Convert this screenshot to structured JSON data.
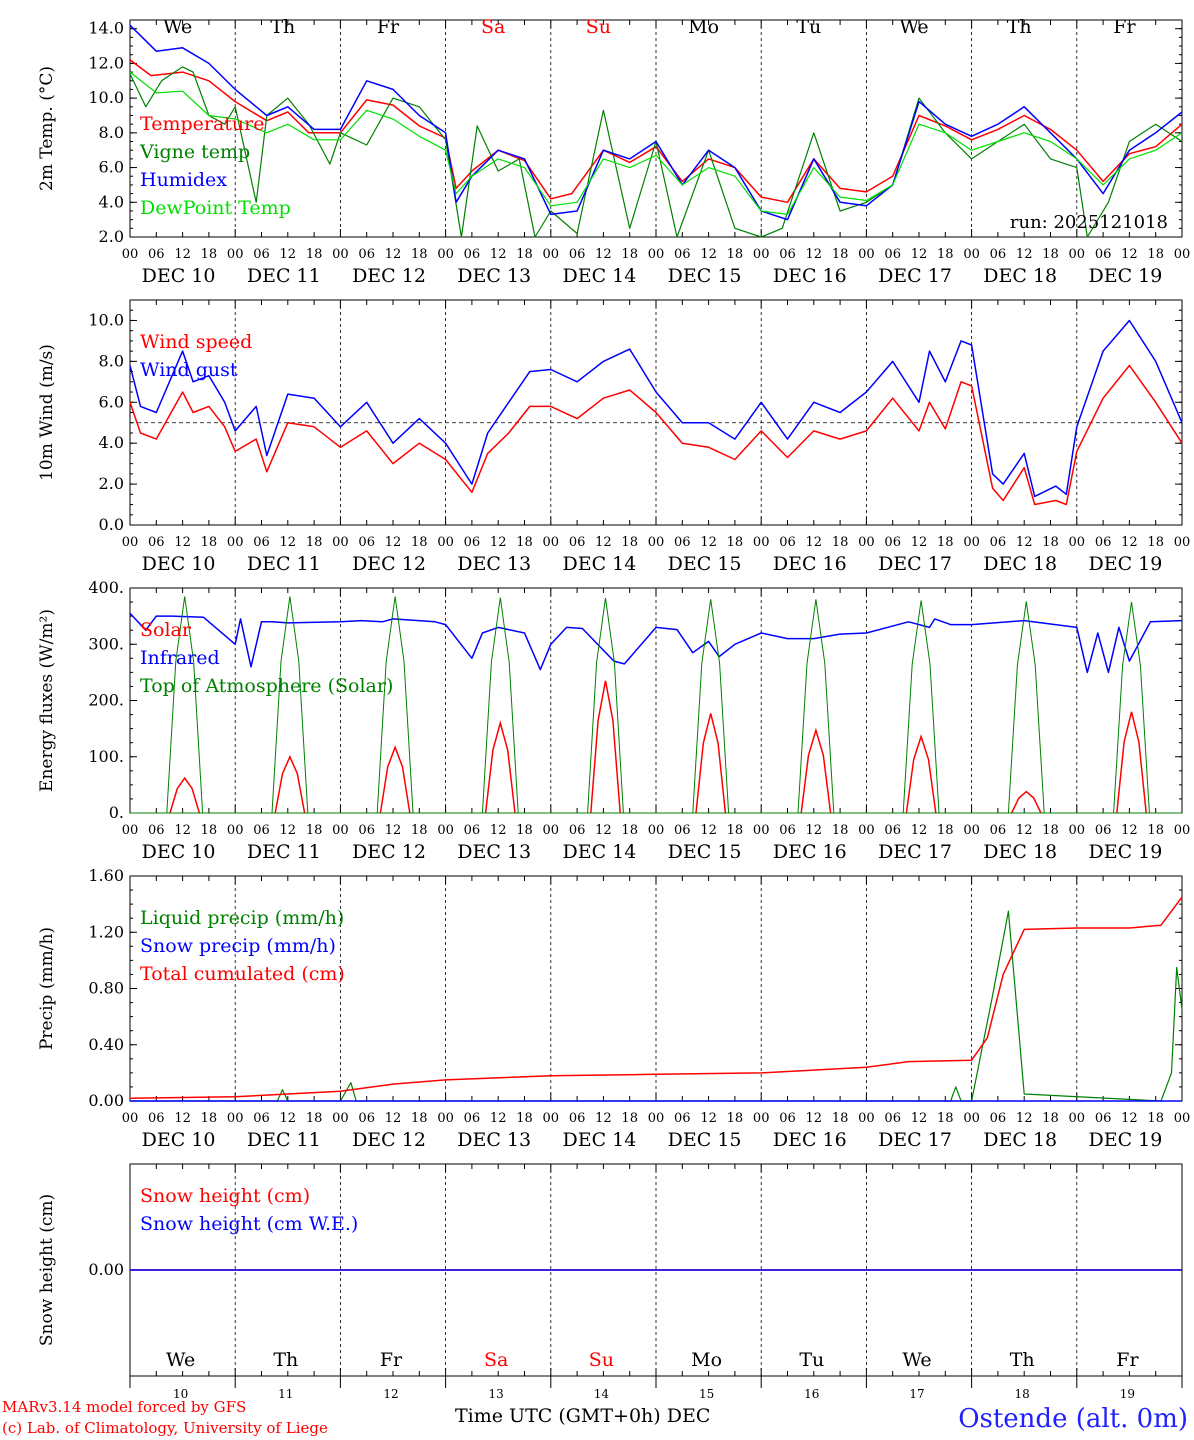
{
  "run_label": "run: 2025121018",
  "x_axis": {
    "hour_ticks": [
      "00",
      "06",
      "12",
      "18"
    ],
    "day_labels": [
      "DEC 10",
      "DEC 11",
      "DEC 12",
      "DEC 13",
      "DEC 14",
      "DEC 15",
      "DEC 16",
      "DEC 17",
      "DEC 18",
      "DEC 19"
    ],
    "weekday_labels": [
      "We",
      "Th",
      "Fr",
      "Sa",
      "Su",
      "Mo",
      "Tu",
      "We",
      "Th",
      "Fr"
    ],
    "weekend_indices": [
      3,
      4
    ],
    "bottom_day_numbers": [
      "10",
      "11",
      "12",
      "13",
      "14",
      "15",
      "16",
      "17",
      "18",
      "19"
    ],
    "title": "Time UTC (GMT+0h)",
    "month": "DEC"
  },
  "footer": {
    "model": "MARv3.14 model forced by GFS",
    "credit": "(c) Lab. of Climatology, University of Liege",
    "station": "Ostende (alt. 0m)"
  },
  "colors": {
    "red": "#ff0000",
    "green": "#008000",
    "blue": "#0000ff",
    "lightgreen": "#00e000",
    "black": "#000000"
  },
  "chart_data": [
    {
      "type": "line",
      "ylabel": "2m Temp. (°C)",
      "ylim": [
        2.0,
        14.5
      ],
      "yticks": [
        2.0,
        4.0,
        6.0,
        8.0,
        10.0,
        12.0,
        14.0
      ],
      "ytick_labels": [
        "2.0",
        "4.0",
        "6.0",
        "8.0",
        "10.0",
        "12.0",
        "14.0"
      ],
      "x_unit": "days since DEC 10 00 UTC",
      "series": [
        {
          "name": "Temperature",
          "color": "red",
          "x": [
            0,
            0.2,
            0.5,
            0.75,
            1.0,
            1.3,
            1.5,
            1.7,
            2.0,
            2.25,
            2.5,
            2.75,
            3.0,
            3.1,
            3.25,
            3.5,
            3.75,
            4.0,
            4.2,
            4.5,
            4.75,
            5.0,
            5.25,
            5.5,
            5.75,
            6.0,
            6.25,
            6.5,
            6.75,
            7.0,
            7.25,
            7.5,
            7.75,
            8.0,
            8.25,
            8.5,
            8.75,
            9.0,
            9.25,
            9.5,
            9.75,
            10.0
          ],
          "values": [
            12.2,
            11.3,
            11.5,
            11.0,
            9.8,
            8.7,
            9.2,
            8.0,
            8.0,
            9.9,
            9.6,
            8.4,
            7.7,
            4.8,
            5.8,
            7.0,
            6.4,
            4.2,
            4.5,
            7.0,
            6.3,
            7.2,
            5.2,
            6.5,
            6.0,
            4.3,
            4.0,
            6.5,
            4.8,
            4.6,
            5.5,
            9.0,
            8.4,
            7.6,
            8.2,
            9.0,
            8.2,
            7.0,
            5.2,
            6.8,
            7.2,
            8.5
          ]
        },
        {
          "name": "Vigne temp",
          "color": "green",
          "x": [
            0,
            0.15,
            0.3,
            0.5,
            0.6,
            0.75,
            0.9,
            1.0,
            1.2,
            1.3,
            1.5,
            1.7,
            1.9,
            2.0,
            2.25,
            2.5,
            2.75,
            3.0,
            3.15,
            3.3,
            3.5,
            3.7,
            3.85,
            4.0,
            4.25,
            4.5,
            4.75,
            5.0,
            5.2,
            5.5,
            5.75,
            6.0,
            6.2,
            6.5,
            6.75,
            7.0,
            7.25,
            7.5,
            7.75,
            8.0,
            8.25,
            8.5,
            8.75,
            9.0,
            9.1,
            9.3,
            9.5,
            9.75,
            10.0
          ],
          "values": [
            11.4,
            9.5,
            11.0,
            11.8,
            11.5,
            9.0,
            8.5,
            9.5,
            4.0,
            9.0,
            10.0,
            8.5,
            6.2,
            8.0,
            7.3,
            10.0,
            9.5,
            7.6,
            2.0,
            8.4,
            5.8,
            6.5,
            2.0,
            3.5,
            2.2,
            9.3,
            2.5,
            7.5,
            2.0,
            7.0,
            2.5,
            2.0,
            2.5,
            8.0,
            3.5,
            4.0,
            5.0,
            10.0,
            8.0,
            6.5,
            7.5,
            8.5,
            6.5,
            6.0,
            2.0,
            4.0,
            7.5,
            8.5,
            7.5
          ]
        },
        {
          "name": "Humidex",
          "color": "blue",
          "x": [
            0,
            0.25,
            0.5,
            0.75,
            1.0,
            1.3,
            1.5,
            1.75,
            2.0,
            2.25,
            2.5,
            2.75,
            3.0,
            3.1,
            3.25,
            3.5,
            3.75,
            4.0,
            4.25,
            4.5,
            4.75,
            5.0,
            5.25,
            5.5,
            5.75,
            6.0,
            6.25,
            6.5,
            6.75,
            7.0,
            7.25,
            7.5,
            7.75,
            8.0,
            8.25,
            8.5,
            8.75,
            9.0,
            9.25,
            9.5,
            9.75,
            10.0
          ],
          "values": [
            14.2,
            12.7,
            12.9,
            12.0,
            10.5,
            9.0,
            9.5,
            8.2,
            8.2,
            11.0,
            10.5,
            9.0,
            8.0,
            4.0,
            5.5,
            7.0,
            6.5,
            3.3,
            3.5,
            7.0,
            6.5,
            7.5,
            5.0,
            7.0,
            6.0,
            3.5,
            3.0,
            6.5,
            4.0,
            3.8,
            5.0,
            9.8,
            8.5,
            7.8,
            8.5,
            9.5,
            8.0,
            6.5,
            4.5,
            7.0,
            8.0,
            9.2
          ]
        },
        {
          "name": "DewPoint Temp",
          "color": "lightgreen",
          "x": [
            0,
            0.25,
            0.5,
            0.75,
            1.0,
            1.3,
            1.5,
            1.75,
            2.0,
            2.25,
            2.5,
            2.75,
            3.0,
            3.1,
            3.25,
            3.5,
            3.75,
            4.0,
            4.25,
            4.5,
            4.75,
            5.0,
            5.25,
            5.5,
            5.75,
            6.0,
            6.25,
            6.5,
            6.75,
            7.0,
            7.25,
            7.5,
            7.75,
            8.0,
            8.25,
            8.5,
            8.75,
            9.0,
            9.25,
            9.5,
            9.75,
            10.0
          ],
          "values": [
            11.5,
            10.3,
            10.4,
            9.0,
            8.8,
            8.0,
            8.5,
            7.6,
            7.6,
            9.3,
            8.8,
            7.8,
            7.0,
            4.5,
            5.5,
            6.5,
            6.0,
            3.8,
            4.0,
            6.5,
            6.0,
            6.7,
            5.0,
            6.0,
            5.5,
            3.5,
            3.3,
            6.0,
            4.3,
            4.1,
            5.0,
            8.5,
            8.0,
            7.0,
            7.5,
            8.0,
            7.5,
            6.5,
            5.0,
            6.5,
            7.0,
            8.0
          ]
        }
      ],
      "legend": [
        "Temperature",
        "Vigne temp",
        "Humidex",
        "DewPoint Temp"
      ],
      "legend_colors": [
        "red",
        "green",
        "blue",
        "lightgreen"
      ]
    },
    {
      "type": "line",
      "ylabel": "10m Wind (m/s)",
      "ylim": [
        0.0,
        11.0
      ],
      "yticks": [
        0.0,
        2.0,
        4.0,
        6.0,
        8.0,
        10.0
      ],
      "ytick_labels": [
        "0.0",
        "2.0",
        "4.0",
        "6.0",
        "8.0",
        "10.0"
      ],
      "reference_line": 5.0,
      "x_unit": "days since DEC 10 00 UTC",
      "series": [
        {
          "name": "Wind speed",
          "color": "red",
          "x": [
            0,
            0.1,
            0.25,
            0.5,
            0.6,
            0.75,
            0.9,
            1.0,
            1.2,
            1.3,
            1.5,
            1.75,
            2.0,
            2.25,
            2.5,
            2.75,
            3.0,
            3.25,
            3.4,
            3.6,
            3.8,
            4.0,
            4.25,
            4.5,
            4.75,
            5.0,
            5.25,
            5.5,
            5.75,
            6.0,
            6.25,
            6.5,
            6.75,
            7.0,
            7.25,
            7.5,
            7.6,
            7.75,
            7.9,
            8.0,
            8.2,
            8.3,
            8.5,
            8.6,
            8.8,
            8.9,
            9.0,
            9.25,
            9.5,
            9.75,
            10.0
          ],
          "values": [
            6.0,
            4.5,
            4.2,
            6.5,
            5.5,
            5.8,
            4.8,
            3.6,
            4.2,
            2.6,
            5.0,
            4.8,
            3.8,
            4.6,
            3.0,
            4.0,
            3.2,
            1.6,
            3.5,
            4.5,
            5.8,
            5.8,
            5.2,
            6.2,
            6.6,
            5.5,
            4.0,
            3.8,
            3.2,
            4.6,
            3.3,
            4.6,
            4.2,
            4.6,
            6.2,
            4.6,
            6.0,
            4.7,
            7.0,
            6.8,
            1.8,
            1.2,
            2.8,
            1.0,
            1.2,
            1.0,
            3.6,
            6.2,
            7.8,
            6.0,
            4.0
          ]
        },
        {
          "name": "Wind gust",
          "color": "blue",
          "x": [
            0,
            0.1,
            0.25,
            0.5,
            0.6,
            0.75,
            0.9,
            1.0,
            1.2,
            1.3,
            1.5,
            1.75,
            2.0,
            2.25,
            2.5,
            2.75,
            3.0,
            3.25,
            3.4,
            3.6,
            3.8,
            4.0,
            4.25,
            4.5,
            4.75,
            5.0,
            5.25,
            5.5,
            5.75,
            6.0,
            6.25,
            6.5,
            6.75,
            7.0,
            7.25,
            7.5,
            7.6,
            7.75,
            7.9,
            8.0,
            8.2,
            8.3,
            8.5,
            8.6,
            8.8,
            8.9,
            9.0,
            9.25,
            9.5,
            9.75,
            10.0
          ],
          "values": [
            7.8,
            5.8,
            5.5,
            8.5,
            7.0,
            7.3,
            6.0,
            4.6,
            5.8,
            3.4,
            6.4,
            6.2,
            4.8,
            6.0,
            4.0,
            5.2,
            4.0,
            2.0,
            4.5,
            6.0,
            7.5,
            7.6,
            7.0,
            8.0,
            8.6,
            6.5,
            5.0,
            5.0,
            4.2,
            6.0,
            4.2,
            6.0,
            5.5,
            6.5,
            8.0,
            6.0,
            8.5,
            7.0,
            9.0,
            8.8,
            2.5,
            2.0,
            3.5,
            1.4,
            1.9,
            1.5,
            4.8,
            8.5,
            10.0,
            8.0,
            5.0
          ]
        }
      ],
      "legend": [
        "Wind speed",
        "Wind gust"
      ],
      "legend_colors": [
        "red",
        "blue"
      ]
    },
    {
      "type": "line",
      "ylabel": "Energy fluxes (W/m²)",
      "ylim": [
        0,
        400
      ],
      "yticks": [
        0,
        100,
        200,
        300,
        400
      ],
      "ytick_labels": [
        "0.",
        "100.",
        "200.",
        "300.",
        "400."
      ],
      "x_unit": "days since DEC 10 00 UTC",
      "series": [
        {
          "name": "Solar",
          "color": "red",
          "daily_peaks": [
            62,
            100,
            117,
            160,
            235,
            177,
            147,
            136,
            38,
            180
          ]
        },
        {
          "name": "Infrared",
          "color": "blue",
          "x": [
            0,
            0.15,
            0.25,
            0.4,
            0.7,
            1.0,
            1.05,
            1.15,
            1.25,
            1.35,
            1.5,
            2.0,
            2.2,
            2.4,
            2.5,
            2.9,
            3.0,
            3.25,
            3.35,
            3.5,
            3.75,
            3.9,
            4.0,
            4.15,
            4.3,
            4.6,
            4.7,
            5.0,
            5.2,
            5.35,
            5.5,
            5.6,
            5.75,
            6.0,
            6.25,
            6.5,
            6.75,
            7.0,
            7.4,
            7.6,
            7.65,
            7.8,
            8.0,
            8.5,
            9.0,
            9.1,
            9.2,
            9.3,
            9.4,
            9.5,
            9.7,
            10.0
          ],
          "values": [
            355,
            325,
            350,
            350,
            348,
            300,
            345,
            260,
            340,
            340,
            338,
            340,
            342,
            340,
            345,
            340,
            335,
            275,
            320,
            330,
            320,
            255,
            300,
            330,
            328,
            270,
            265,
            330,
            326,
            285,
            305,
            278,
            300,
            320,
            310,
            310,
            318,
            320,
            340,
            330,
            345,
            335,
            335,
            342,
            330,
            250,
            320,
            250,
            330,
            270,
            340,
            342
          ]
        },
        {
          "name": "Top of Atmosphere (Solar)",
          "color": "green",
          "daily_peaks": [
            385,
            385,
            385,
            383,
            382,
            380,
            380,
            378,
            376,
            375
          ]
        }
      ],
      "legend": [
        "Solar",
        "Infrared",
        "Top of Atmosphere (Solar)"
      ],
      "legend_colors": [
        "red",
        "blue",
        "green"
      ]
    },
    {
      "type": "line",
      "ylabel": "Precip (mm/h)",
      "ylim": [
        0.0,
        1.6
      ],
      "yticks": [
        0.0,
        0.4,
        0.8,
        1.2,
        1.6
      ],
      "ytick_labels": [
        "0.00",
        "0.40",
        "0.80",
        "1.20",
        "1.60"
      ],
      "x_unit": "days since DEC 10 00 UTC",
      "series": [
        {
          "name": "Liquid precip (mm/h)",
          "color": "green",
          "x": [
            0,
            1.4,
            1.45,
            1.5,
            2.0,
            2.1,
            2.15,
            2.2,
            7.8,
            7.85,
            7.9,
            8.0,
            8.2,
            8.35,
            8.5,
            9.8,
            9.9,
            9.95,
            10.0
          ],
          "values": [
            0,
            0,
            0.08,
            0,
            0,
            0.13,
            0,
            0,
            0,
            0.1,
            0,
            0,
            0.75,
            1.35,
            0.05,
            0,
            0.2,
            0.95,
            0.65
          ]
        },
        {
          "name": "Snow precip (mm/h)",
          "color": "blue",
          "x": [
            0,
            10.0
          ],
          "values": [
            0,
            0
          ]
        },
        {
          "name": "Total cumulated (cm)",
          "color": "red",
          "x": [
            0,
            1.0,
            2.0,
            2.5,
            3.0,
            4.0,
            5.0,
            6.0,
            7.0,
            7.4,
            8.0,
            8.15,
            8.3,
            8.5,
            9.0,
            9.5,
            9.8,
            10.0
          ],
          "values": [
            0.02,
            0.03,
            0.07,
            0.12,
            0.15,
            0.18,
            0.19,
            0.2,
            0.24,
            0.28,
            0.29,
            0.45,
            0.9,
            1.22,
            1.23,
            1.23,
            1.25,
            1.45
          ]
        }
      ],
      "legend": [
        "Liquid precip (mm/h)",
        "Snow precip (mm/h)",
        "Total cumulated (cm)"
      ],
      "legend_colors": [
        "green",
        "blue",
        "red"
      ]
    },
    {
      "type": "line",
      "ylabel": "Snow height (cm)",
      "ytick_labels": [
        "0.00"
      ],
      "x_unit": "days since DEC 10 00 UTC",
      "series": [
        {
          "name": "Snow height (cm)",
          "color": "red",
          "x": [
            0,
            10
          ],
          "values": [
            0,
            0
          ]
        },
        {
          "name": "Snow height (cm W.E.)",
          "color": "blue",
          "x": [
            0,
            10
          ],
          "values": [
            0,
            0
          ]
        }
      ],
      "legend": [
        "Snow height (cm)",
        "Snow height (cm W.E.)"
      ],
      "legend_colors": [
        "red",
        "blue"
      ]
    }
  ]
}
